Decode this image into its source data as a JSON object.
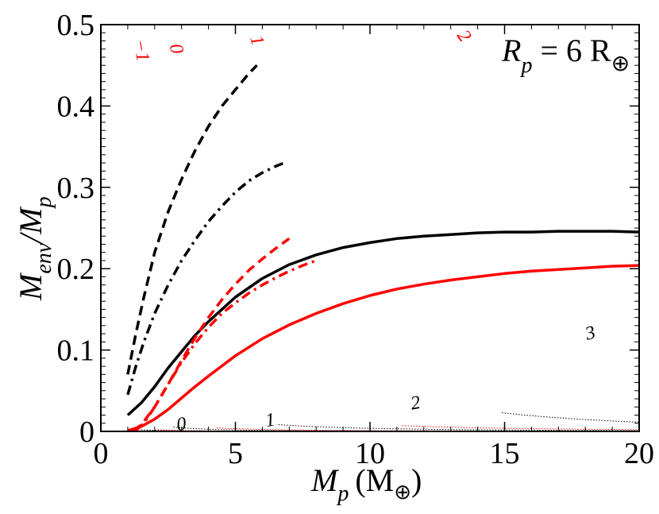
{
  "chart_data": {
    "type": "line",
    "title": "",
    "xlabel": {
      "main": "M",
      "sub": "p",
      "unit": "(M",
      "unit_sub": "⊕",
      "unit_close": ")"
    },
    "ylabel": {
      "main": "M",
      "sub1": "env",
      "slash": "/M",
      "sub2": "p"
    },
    "annotation": {
      "main": "R",
      "sub": "p",
      "rest": " = 6 R",
      "earth": "⊕"
    },
    "xlim": [
      0,
      20
    ],
    "ylim": [
      0,
      0.5
    ],
    "xticks": [
      0,
      5,
      10,
      15,
      20
    ],
    "xtick_labels": [
      "0",
      "5",
      "10",
      "15",
      "20"
    ],
    "yticks": [
      0,
      0.1,
      0.2,
      0.3,
      0.4,
      0.5
    ],
    "ytick_labels": [
      "0",
      "0.1",
      "0.2",
      "0.3",
      "0.4",
      "0.5"
    ],
    "colors": {
      "black": "#000000",
      "red": "#ff0000"
    },
    "series": [
      {
        "name": "black-solid",
        "color": "#000000",
        "style": "solid",
        "x": [
          1.0,
          1.5,
          2.0,
          2.5,
          3.0,
          3.5,
          4.0,
          5.0,
          6.0,
          7.0,
          8.0,
          9.0,
          10.0,
          11.0,
          12.0,
          13.0,
          14.0,
          15.0,
          16.0,
          17.0,
          18.0,
          19.0,
          20.0
        ],
        "y": [
          0.02,
          0.035,
          0.055,
          0.078,
          0.098,
          0.118,
          0.135,
          0.165,
          0.188,
          0.205,
          0.217,
          0.226,
          0.232,
          0.237,
          0.24,
          0.242,
          0.244,
          0.245,
          0.245,
          0.246,
          0.246,
          0.246,
          0.245
        ]
      },
      {
        "name": "black-dashed",
        "color": "#000000",
        "style": "dashed",
        "x": [
          1.0,
          1.3,
          1.6,
          2.0,
          2.5,
          3.0,
          3.5,
          4.0,
          4.5,
          5.0,
          5.5,
          5.8
        ],
        "y": [
          0.07,
          0.12,
          0.165,
          0.22,
          0.27,
          0.31,
          0.345,
          0.375,
          0.4,
          0.42,
          0.44,
          0.45
        ]
      },
      {
        "name": "black-dashdot",
        "color": "#000000",
        "style": "dashdot",
        "x": [
          1.0,
          1.3,
          1.6,
          2.0,
          2.5,
          3.0,
          3.5,
          4.0,
          4.5,
          5.0,
          5.5,
          6.0,
          6.5,
          6.8
        ],
        "y": [
          0.045,
          0.08,
          0.11,
          0.145,
          0.18,
          0.21,
          0.235,
          0.258,
          0.277,
          0.294,
          0.308,
          0.318,
          0.326,
          0.33
        ]
      },
      {
        "name": "red-solid",
        "color": "#ff0000",
        "style": "solid",
        "x": [
          1.0,
          1.5,
          2.0,
          2.5,
          3.0,
          3.5,
          4.0,
          5.0,
          6.0,
          7.0,
          8.0,
          9.0,
          10.0,
          11.0,
          12.0,
          13.0,
          14.0,
          15.0,
          16.0,
          17.0,
          18.0,
          19.0,
          20.0
        ],
        "y": [
          0.001,
          0.006,
          0.015,
          0.027,
          0.041,
          0.055,
          0.068,
          0.093,
          0.114,
          0.131,
          0.145,
          0.157,
          0.167,
          0.175,
          0.181,
          0.186,
          0.19,
          0.194,
          0.197,
          0.199,
          0.201,
          0.203,
          0.204
        ]
      },
      {
        "name": "red-dashed",
        "color": "#ff0000",
        "style": "dashed",
        "x": [
          1.2,
          1.5,
          2.0,
          2.5,
          3.0,
          3.5,
          4.0,
          4.5,
          5.0,
          5.5,
          6.0,
          6.5,
          7.0
        ],
        "y": [
          0.001,
          0.008,
          0.03,
          0.058,
          0.087,
          0.115,
          0.14,
          0.162,
          0.181,
          0.198,
          0.212,
          0.225,
          0.237
        ]
      },
      {
        "name": "red-dashdot",
        "color": "#ff0000",
        "style": "dashdot",
        "x": [
          1.3,
          1.6,
          2.0,
          2.5,
          3.0,
          3.5,
          4.0,
          4.5,
          5.0,
          5.5,
          6.0,
          6.5,
          7.0,
          7.5,
          8.0
        ],
        "y": [
          0.001,
          0.01,
          0.03,
          0.058,
          0.085,
          0.108,
          0.128,
          0.145,
          0.158,
          0.17,
          0.18,
          0.189,
          0.197,
          0.204,
          0.21
        ]
      }
    ],
    "contours": [
      {
        "name": "contour-black-0",
        "color": "#000000",
        "k": 0.00055,
        "p": 1.4,
        "x_from": 0.85,
        "x_to": 20
      },
      {
        "name": "contour-black-1",
        "color": "#000000",
        "k": 0.004,
        "p": 1.6,
        "x_from": 1.5,
        "x_to": 20
      },
      {
        "name": "contour-black-2",
        "color": "#000000",
        "k": 0.03,
        "p": 1.75,
        "x_from": 2.7,
        "x_to": 20
      },
      {
        "name": "contour-black-3",
        "color": "#000000",
        "k": 0.3,
        "p": 1.9,
        "x_from": 6.6,
        "x_to": 20
      },
      {
        "name": "contour-black-4",
        "color": "#000000",
        "k": 15,
        "p": 2.4,
        "x_from": 14.9,
        "x_to": 20
      },
      {
        "name": "contour-red-m1",
        "color": "#ff0000",
        "k": 0.001,
        "p": 1.5,
        "x_from": 1.2,
        "x_to": 20
      },
      {
        "name": "contour-red-0",
        "color": "#ff0000",
        "k": 0.007,
        "p": 1.65,
        "x_from": 2.1,
        "x_to": 20
      },
      {
        "name": "contour-red-1",
        "color": "#ff0000",
        "k": 0.06,
        "p": 1.8,
        "x_from": 4.3,
        "x_to": 20
      },
      {
        "name": "contour-red-2",
        "color": "#ff0000",
        "k": 1.0,
        "p": 2.05,
        "x_from": 11.2,
        "x_to": 20
      }
    ],
    "contour_labels": [
      {
        "name": "label-black-0",
        "text": "0",
        "color": "#000000",
        "x": 3.0,
        "y": 0.007,
        "rot": -8
      },
      {
        "name": "label-black-1",
        "text": "1",
        "color": "#000000",
        "x": 6.3,
        "y": 0.012,
        "rot": -8
      },
      {
        "name": "label-black-2",
        "text": "2",
        "color": "#000000",
        "x": 11.7,
        "y": 0.033,
        "rot": -10
      },
      {
        "name": "label-black-3",
        "text": "3",
        "color": "#000000",
        "x": 18.2,
        "y": 0.119,
        "rot": -15
      },
      {
        "name": "label-red-m1",
        "text": "−1",
        "color": "#ff0000",
        "x": 1.45,
        "y": 0.468,
        "rot": 80
      },
      {
        "name": "label-red-0",
        "text": "0",
        "color": "#ff0000",
        "x": 2.75,
        "y": 0.47,
        "rot": 78
      },
      {
        "name": "label-red-1",
        "text": "1",
        "color": "#ff0000",
        "x": 5.75,
        "y": 0.48,
        "rot": 72
      },
      {
        "name": "label-red-2",
        "text": "2",
        "color": "#ff0000",
        "x": 13.45,
        "y": 0.485,
        "rot": 55
      }
    ]
  }
}
